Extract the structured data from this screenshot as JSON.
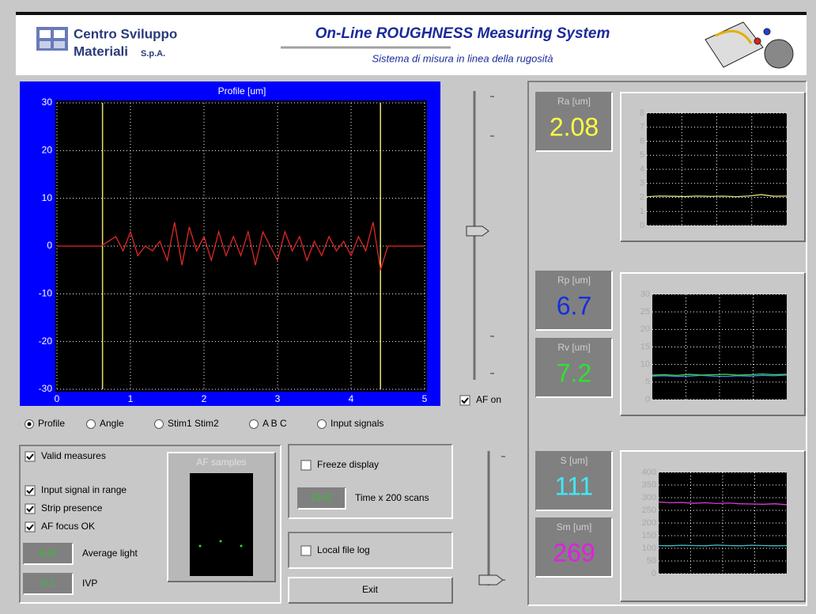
{
  "header": {
    "company_line1": "Centro Sviluppo",
    "company_line2": "Materiali",
    "company_suffix": "S.p.A.",
    "title": "On-Line ROUGHNESS Measuring System",
    "subtitle": "Sistema di misura in linea della rugosità"
  },
  "profile_chart": {
    "title": "Profile [um]",
    "xlim": [
      0,
      5
    ],
    "ylim": [
      -30,
      30
    ],
    "xticks": [
      0,
      1,
      2,
      3,
      4,
      5
    ],
    "yticks": [
      -30,
      -20,
      -10,
      0,
      10,
      20,
      30
    ],
    "grid": true,
    "color": "#e02828",
    "cursor_color": "#e8e070",
    "cursors": [
      0.62,
      4.4
    ],
    "x": [
      0,
      0.1,
      0.2,
      0.3,
      0.4,
      0.5,
      0.6,
      0.7,
      0.8,
      0.9,
      1.0,
      1.1,
      1.2,
      1.3,
      1.4,
      1.5,
      1.6,
      1.7,
      1.8,
      1.9,
      2.0,
      2.1,
      2.2,
      2.3,
      2.4,
      2.5,
      2.6,
      2.7,
      2.8,
      2.9,
      3.0,
      3.1,
      3.2,
      3.3,
      3.4,
      3.5,
      3.6,
      3.7,
      3.8,
      3.9,
      4.0,
      4.1,
      4.2,
      4.3,
      4.4,
      4.5,
      4.6,
      4.7,
      4.8,
      4.9,
      5.0
    ],
    "values": [
      0,
      0,
      0,
      0,
      0,
      0,
      0,
      1,
      2,
      -1,
      3,
      -2,
      0,
      -1,
      1,
      -3,
      5,
      -4,
      4,
      -1,
      2,
      -3,
      3,
      -2,
      2,
      -2,
      3,
      -4,
      3,
      0,
      -3,
      3,
      -1,
      2,
      -3,
      1,
      -2,
      2,
      -1,
      1,
      -2,
      2,
      -1,
      5,
      -5,
      0,
      0,
      0,
      0,
      0,
      0
    ]
  },
  "view": {
    "options": [
      "Profile",
      "Angle",
      "Stim1 Stim2",
      "A B C",
      "Input signals"
    ],
    "selected": 0
  },
  "af_on": {
    "label": "AF on",
    "checked": true
  },
  "status_checks": [
    {
      "label": "Valid measures",
      "checked": true
    },
    {
      "label": "Input signal in range",
      "checked": true
    },
    {
      "label": "Strip presence",
      "checked": true
    },
    {
      "label": "AF focus OK",
      "checked": true
    }
  ],
  "average_light": {
    "value": 6.67,
    "label": "Average light"
  },
  "ivp": {
    "value": 0.7,
    "label": "IVP"
  },
  "af_samples": {
    "title": "AF samples"
  },
  "freeze_display": {
    "label": "Freeze display",
    "checked": false
  },
  "time_scans": {
    "value": 2141,
    "label": "Time x 200 scans"
  },
  "local_file_log": {
    "label": "Local file log",
    "checked": false
  },
  "exit_button": "Exit",
  "meters": [
    {
      "label": "Ra [um]",
      "value": 2.08,
      "color": "#ffff40"
    },
    {
      "label": "Rp [um]",
      "value": 6.7,
      "color": "#1030e0"
    },
    {
      "label": "Rv [um]",
      "value": 7.2,
      "color": "#30e030"
    },
    {
      "label": "S [um]",
      "value": 111,
      "color": "#40e8f8"
    },
    {
      "label": "Sm [um]",
      "value": 269,
      "color": "#e020e0"
    }
  ],
  "trend_charts": [
    {
      "ylim": [
        0,
        8
      ],
      "yticks": [
        0,
        1,
        2,
        3,
        4,
        5,
        6,
        7,
        8
      ],
      "series": [
        {
          "color": "#e0e080",
          "values": [
            2.05,
            2.1,
            2.08,
            2.06,
            2.1,
            2.07,
            2.09,
            2.05,
            2.1,
            2.2,
            2.08,
            2.1
          ]
        }
      ]
    },
    {
      "ylim": [
        0,
        30
      ],
      "yticks": [
        0,
        5,
        10,
        15,
        20,
        25,
        30
      ],
      "series": [
        {
          "color": "#4090ff",
          "values": [
            6.7,
            6.8,
            6.6,
            6.7,
            6.9,
            6.7,
            6.6,
            6.8,
            6.7,
            6.9,
            6.8,
            7.0
          ]
        },
        {
          "color": "#40d040",
          "values": [
            7.0,
            7.1,
            6.9,
            7.2,
            7.0,
            7.1,
            7.2,
            7.0,
            7.1,
            7.3,
            7.1,
            7.2
          ]
        }
      ]
    },
    {
      "ylim": [
        0,
        400
      ],
      "yticks": [
        0,
        50,
        100,
        150,
        200,
        250,
        300,
        350,
        400
      ],
      "series": [
        {
          "color": "#d040d0",
          "values": [
            283,
            280,
            281,
            278,
            280,
            277,
            279,
            276,
            275,
            274,
            276,
            272
          ]
        },
        {
          "color": "#40c0c8",
          "values": [
            111,
            110,
            112,
            111,
            110,
            113,
            111,
            110,
            112,
            111,
            110,
            111
          ]
        }
      ]
    }
  ]
}
